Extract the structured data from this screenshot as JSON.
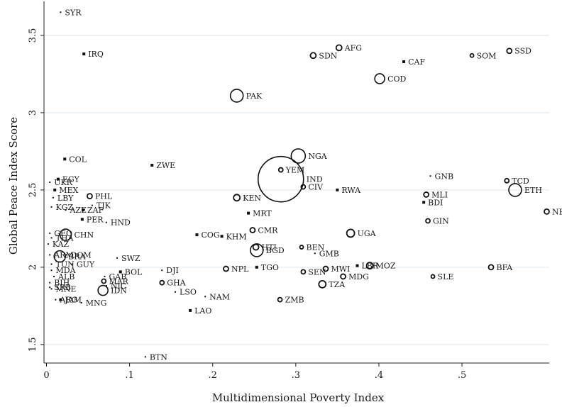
{
  "chart_data": {
    "type": "scatter",
    "xlabel": "Multidimensional Poverty Index",
    "ylabel": "Global Peace Index Score",
    "xlim": [
      -0.003,
      0.605
    ],
    "ylim": [
      1.38,
      3.72
    ],
    "xticks": [
      {
        "value": 0,
        "label": "0"
      },
      {
        "value": 0.1,
        "label": ".1"
      },
      {
        "value": 0.2,
        "label": ".2"
      },
      {
        "value": 0.3,
        "label": ".3"
      },
      {
        "value": 0.4,
        "label": ".4"
      },
      {
        "value": 0.5,
        "label": ".5"
      }
    ],
    "yticks": [
      {
        "value": 1.5,
        "label": "1.5"
      },
      {
        "value": 2,
        "label": "2"
      },
      {
        "value": 2.5,
        "label": "2.5"
      },
      {
        "value": 3,
        "label": "3"
      },
      {
        "value": 3.5,
        "label": "3.5"
      }
    ],
    "grid": true,
    "marker_note": "hollow circles scaled by population weight",
    "points": [
      {
        "label": "SYR",
        "x": 0.017,
        "y": 3.65,
        "r": 1
      },
      {
        "label": "IRQ",
        "x": 0.045,
        "y": 3.38,
        "r": 2
      },
      {
        "label": "AFG",
        "x": 0.352,
        "y": 3.42,
        "r": 4
      },
      {
        "label": "SDN",
        "x": 0.321,
        "y": 3.37,
        "r": 4
      },
      {
        "label": "CAF",
        "x": 0.43,
        "y": 3.33,
        "r": 2
      },
      {
        "label": "SOM",
        "x": 0.512,
        "y": 3.37,
        "r": 2.5
      },
      {
        "label": "SSD",
        "x": 0.557,
        "y": 3.4,
        "r": 3.5
      },
      {
        "label": "COD",
        "x": 0.401,
        "y": 3.22,
        "r": 7
      },
      {
        "label": "PAK",
        "x": 0.229,
        "y": 3.11,
        "r": 9
      },
      {
        "label": "COL",
        "x": 0.022,
        "y": 2.7,
        "r": 2
      },
      {
        "label": "ZWE",
        "x": 0.127,
        "y": 2.66,
        "r": 2
      },
      {
        "label": "NGA",
        "x": 0.303,
        "y": 2.72,
        "r": 10
      },
      {
        "label": "IND",
        "x": 0.282,
        "y": 2.57,
        "r": 32
      },
      {
        "label": "YEM",
        "x": 0.282,
        "y": 2.63,
        "r": 3
      },
      {
        "label": "CIV",
        "x": 0.309,
        "y": 2.52,
        "r": 3
      },
      {
        "label": "RWA",
        "x": 0.35,
        "y": 2.5,
        "r": 2
      },
      {
        "label": "GNB",
        "x": 0.462,
        "y": 2.59,
        "r": 1
      },
      {
        "label": "TCD",
        "x": 0.554,
        "y": 2.56,
        "r": 3
      },
      {
        "label": "ETH",
        "x": 0.564,
        "y": 2.5,
        "r": 9
      },
      {
        "label": "MLI",
        "x": 0.457,
        "y": 2.47,
        "r": 3.5
      },
      {
        "label": "BDI",
        "x": 0.454,
        "y": 2.42,
        "r": 2
      },
      {
        "label": "NER",
        "x": 0.602,
        "y": 2.36,
        "r": 3.5
      },
      {
        "label": "GIN",
        "x": 0.459,
        "y": 2.3,
        "r": 3
      },
      {
        "label": "EGY",
        "x": 0.014,
        "y": 2.57,
        "r": 2
      },
      {
        "label": "UKR",
        "x": 0.004,
        "y": 2.55,
        "r": 1
      },
      {
        "label": "MEX",
        "x": 0.01,
        "y": 2.5,
        "r": 2
      },
      {
        "label": "LBY",
        "x": 0.008,
        "y": 2.45,
        "r": 1
      },
      {
        "label": "PHL",
        "x": 0.052,
        "y": 2.46,
        "r": 3.5
      },
      {
        "label": "TJK",
        "x": 0.055,
        "y": 2.4,
        "r": 1
      },
      {
        "label": "KGZ",
        "x": 0.006,
        "y": 2.39,
        "r": 1
      },
      {
        "label": "AZE",
        "x": 0.023,
        "y": 2.37,
        "r": 1
      },
      {
        "label": "ZAF",
        "x": 0.044,
        "y": 2.37,
        "r": 2
      },
      {
        "label": "PER",
        "x": 0.043,
        "y": 2.31,
        "r": 2
      },
      {
        "label": "HND",
        "x": 0.072,
        "y": 2.29,
        "r": 1
      },
      {
        "label": "KEN",
        "x": 0.229,
        "y": 2.45,
        "r": 4.5
      },
      {
        "label": "MRT",
        "x": 0.243,
        "y": 2.35,
        "r": 2
      },
      {
        "label": "UGA",
        "x": 0.366,
        "y": 2.22,
        "r": 5.5
      },
      {
        "label": "CMR",
        "x": 0.248,
        "y": 2.24,
        "r": 3.5
      },
      {
        "label": "COG",
        "x": 0.181,
        "y": 2.21,
        "r": 2
      },
      {
        "label": "KHM",
        "x": 0.211,
        "y": 2.2,
        "r": 2
      },
      {
        "label": "CHN",
        "x": 0.023,
        "y": 2.21,
        "r": 8
      },
      {
        "label": "GEO",
        "x": 0.004,
        "y": 2.22,
        "r": 1
      },
      {
        "label": "THA",
        "x": 0.006,
        "y": 2.19,
        "r": 1
      },
      {
        "label": "KAZ",
        "x": 0.002,
        "y": 2.15,
        "r": 1
      },
      {
        "label": "HTI",
        "x": 0.252,
        "y": 2.13,
        "r": 4
      },
      {
        "label": "BGD",
        "x": 0.253,
        "y": 2.11,
        "r": 9
      },
      {
        "label": "BEN",
        "x": 0.307,
        "y": 2.13,
        "r": 2.5
      },
      {
        "label": "GMB",
        "x": 0.323,
        "y": 2.09,
        "r": 1
      },
      {
        "label": "ARM",
        "x": 0.004,
        "y": 2.08,
        "r": 1
      },
      {
        "label": "DOM",
        "x": 0.024,
        "y": 2.08,
        "r": 1
      },
      {
        "label": "BRA",
        "x": 0.016,
        "y": 2.07,
        "r": 8
      },
      {
        "label": "SWZ",
        "x": 0.085,
        "y": 2.06,
        "r": 1
      },
      {
        "label": "TUN",
        "x": 0.006,
        "y": 2.02,
        "r": 1
      },
      {
        "label": "GUY",
        "x": 0.031,
        "y": 2.02,
        "r": 1
      },
      {
        "label": "MDA",
        "x": 0.006,
        "y": 1.98,
        "r": 1
      },
      {
        "label": "BOL",
        "x": 0.089,
        "y": 1.97,
        "r": 2
      },
      {
        "label": "GAB",
        "x": 0.07,
        "y": 1.94,
        "r": 1
      },
      {
        "label": "ALB",
        "x": 0.009,
        "y": 1.94,
        "r": 1
      },
      {
        "label": "DJI",
        "x": 0.139,
        "y": 1.98,
        "r": 1
      },
      {
        "label": "NPL",
        "x": 0.216,
        "y": 1.99,
        "r": 3.5
      },
      {
        "label": "TGO",
        "x": 0.253,
        "y": 2.0,
        "r": 2
      },
      {
        "label": "SEN",
        "x": 0.309,
        "y": 1.97,
        "r": 3
      },
      {
        "label": "MWI",
        "x": 0.336,
        "y": 1.99,
        "r": 3.5
      },
      {
        "label": "LBR",
        "x": 0.374,
        "y": 2.01,
        "r": 2
      },
      {
        "label": "MOZ",
        "x": 0.389,
        "y": 2.01,
        "r": 4.5
      },
      {
        "label": "MDG",
        "x": 0.357,
        "y": 1.94,
        "r": 3.5
      },
      {
        "label": "BFA",
        "x": 0.535,
        "y": 2.0,
        "r": 3.5
      },
      {
        "label": "SLE",
        "x": 0.465,
        "y": 1.94,
        "r": 2.5
      },
      {
        "label": "TZA",
        "x": 0.332,
        "y": 1.89,
        "r": 5
      },
      {
        "label": "MAR",
        "x": 0.069,
        "y": 1.91,
        "r": 3
      },
      {
        "label": "NIC",
        "x": 0.072,
        "y": 1.88,
        "r": 1
      },
      {
        "label": "GHA",
        "x": 0.139,
        "y": 1.9,
        "r": 3
      },
      {
        "label": "BIH",
        "x": 0.004,
        "y": 1.9,
        "r": 1
      },
      {
        "label": "SRB",
        "x": 0.004,
        "y": 1.87,
        "r": 1
      },
      {
        "label": "MNE",
        "x": 0.006,
        "y": 1.86,
        "r": 1
      },
      {
        "label": "IDN",
        "x": 0.068,
        "y": 1.85,
        "r": 7
      },
      {
        "label": "LSO",
        "x": 0.155,
        "y": 1.84,
        "r": 1
      },
      {
        "label": "NAM",
        "x": 0.191,
        "y": 1.81,
        "r": 1
      },
      {
        "label": "ZMB",
        "x": 0.281,
        "y": 1.79,
        "r": 3
      },
      {
        "label": "ARG",
        "x": 0.011,
        "y": 1.79,
        "r": 1
      },
      {
        "label": "JAM",
        "x": 0.017,
        "y": 1.79,
        "r": 2
      },
      {
        "label": "MNG",
        "x": 0.042,
        "y": 1.77,
        "r": 1
      },
      {
        "label": "LAO",
        "x": 0.173,
        "y": 1.72,
        "r": 2
      },
      {
        "label": "BTN",
        "x": 0.119,
        "y": 1.42,
        "r": 1
      }
    ]
  }
}
